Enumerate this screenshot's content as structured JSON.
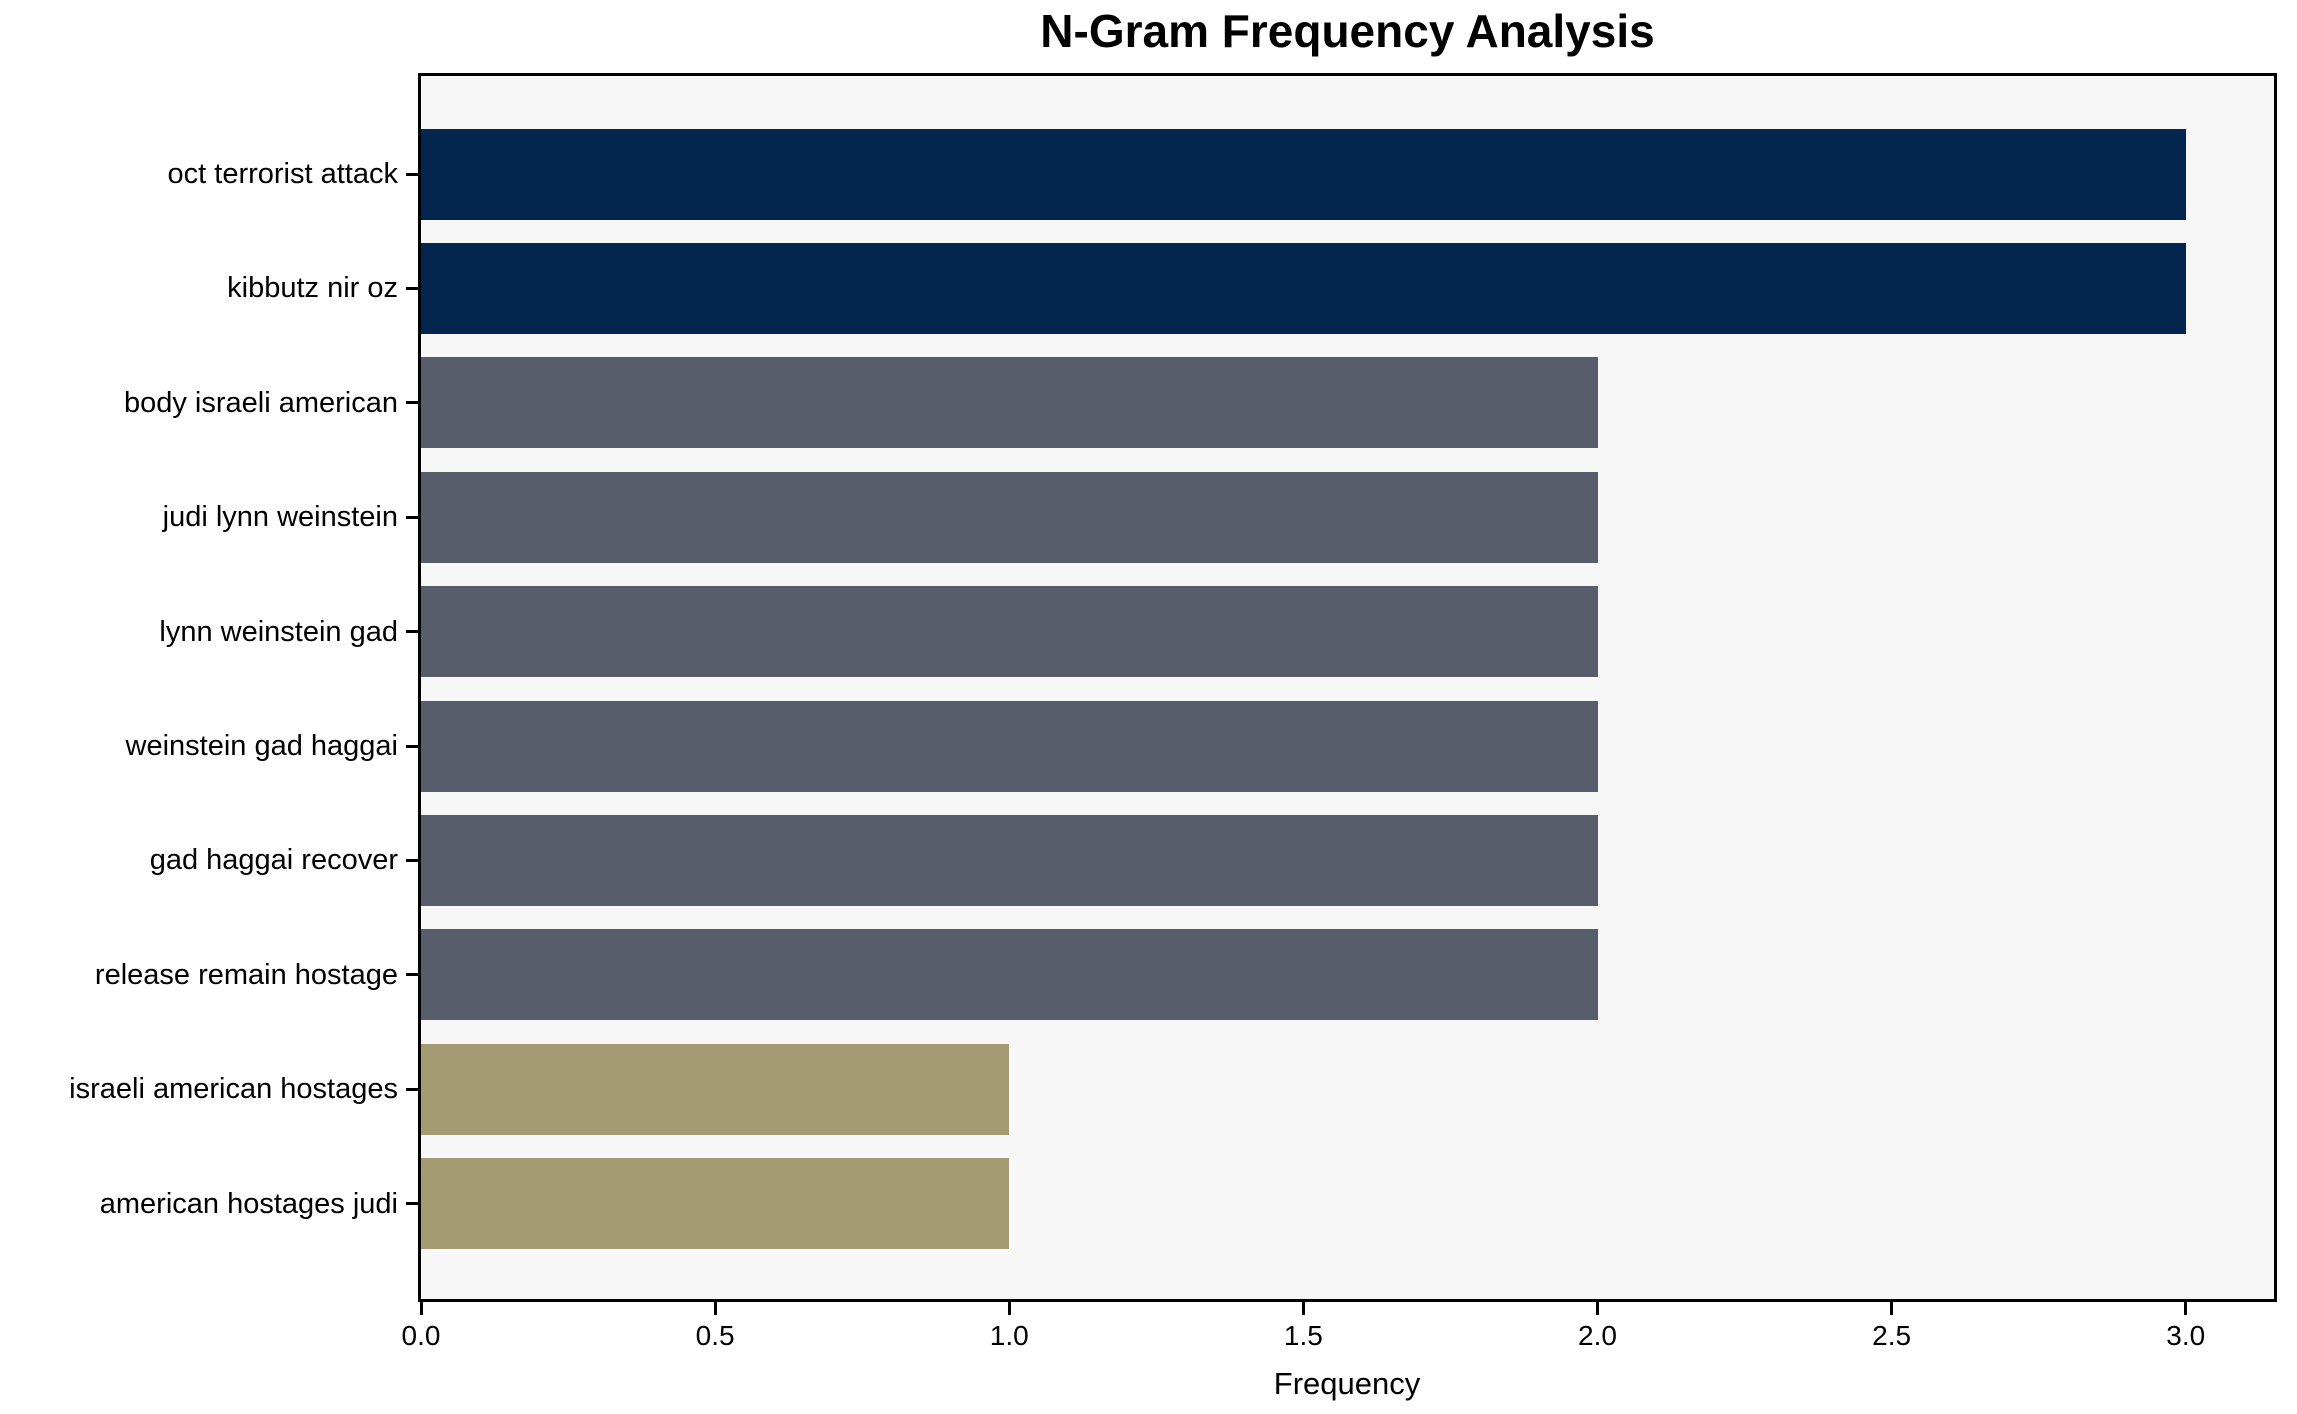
{
  "figure": {
    "background": "#ffffff",
    "plot_background": "#f7f7f8",
    "axes_border_color": "#000000",
    "text_color": "#000000"
  },
  "chart_data": {
    "type": "bar",
    "orientation": "horizontal",
    "title": "N-Gram Frequency Analysis",
    "xlabel": "Frequency",
    "ylabel": "",
    "categories": [
      "oct terrorist attack",
      "kibbutz nir oz",
      "body israeli american",
      "judi lynn weinstein",
      "lynn weinstein gad",
      "weinstein gad haggai",
      "gad haggai recover",
      "release remain hostage",
      "israeli american hostages",
      "american hostages judi"
    ],
    "values": [
      3,
      3,
      2,
      2,
      2,
      2,
      2,
      2,
      1,
      1
    ],
    "bar_colors": [
      "#03254e",
      "#03254e",
      "#575d6b",
      "#575d6b",
      "#575d6b",
      "#575d6b",
      "#575d6b",
      "#575d6b",
      "#a49b72",
      "#a49b72"
    ],
    "color_by_value": {
      "3": "#03254e",
      "2": "#575d6b",
      "1": "#a49b72"
    },
    "xlim": [
      0,
      3.15
    ],
    "xticks": [
      "0.0",
      "0.5",
      "1.0",
      "1.5",
      "2.0",
      "2.5",
      "3.0"
    ],
    "xtick_values": [
      0,
      0.5,
      1,
      1.5,
      2,
      2.5,
      3
    ],
    "grid": false
  }
}
